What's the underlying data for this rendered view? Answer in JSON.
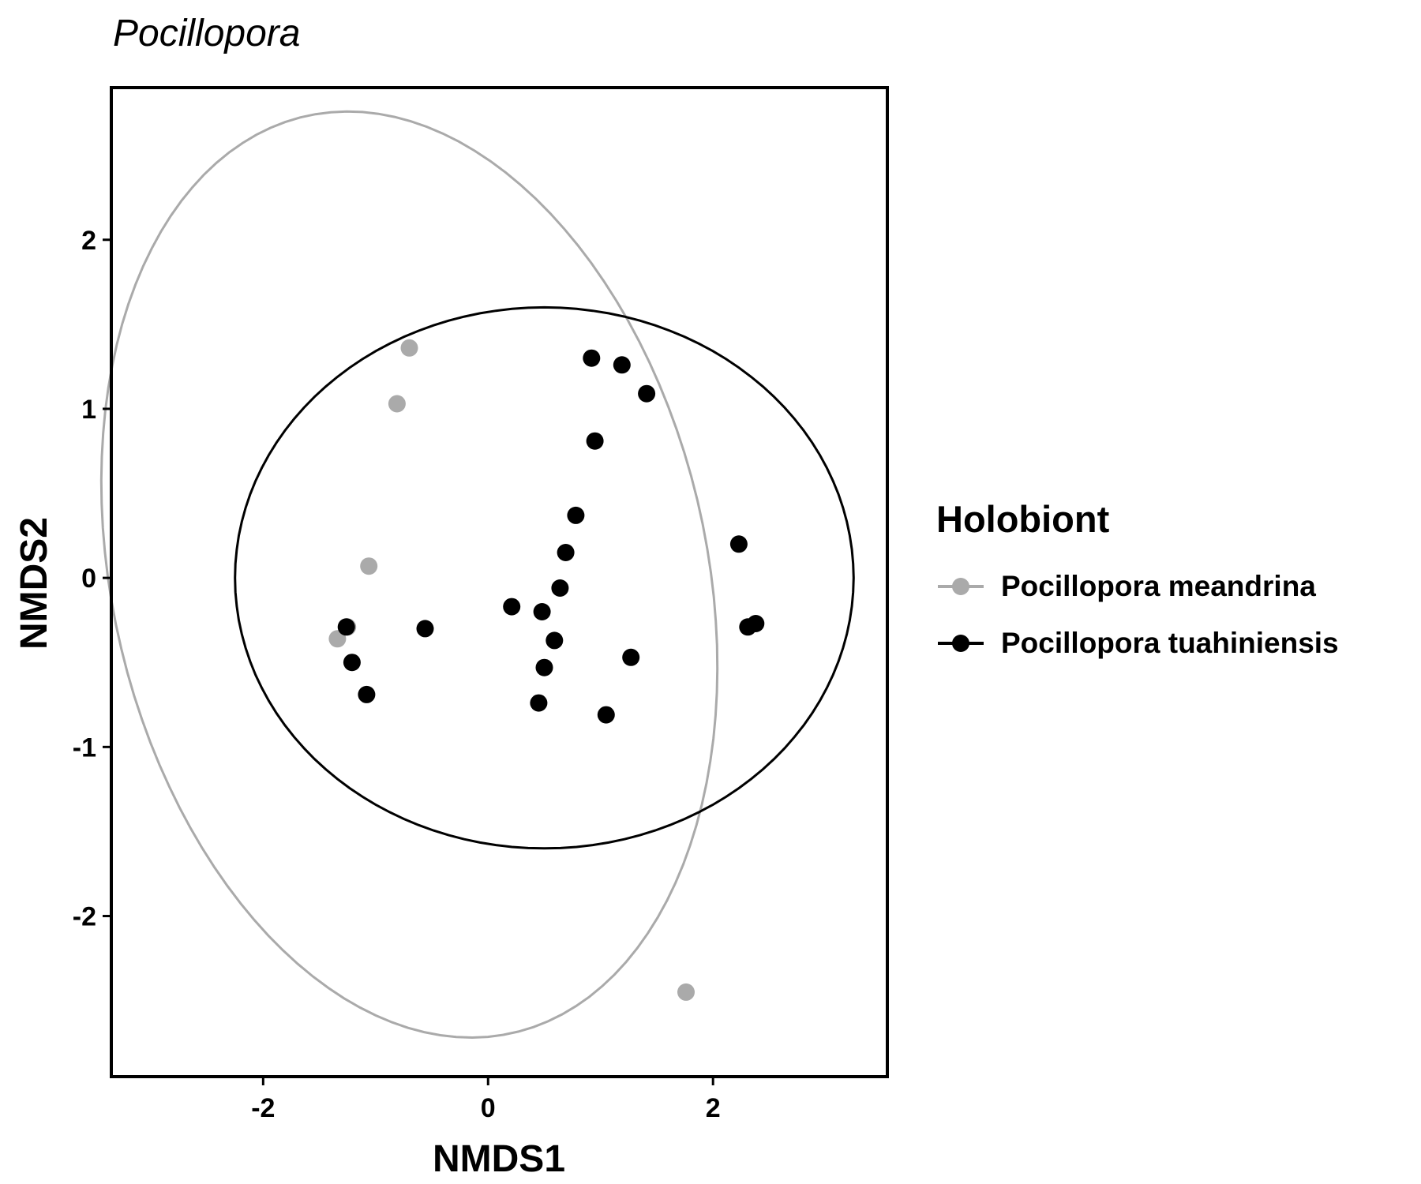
{
  "chart_data": {
    "type": "scatter",
    "title": "Pocillopora",
    "xlabel": "NMDS1",
    "ylabel": "NMDS2",
    "xlim": [
      -3.35,
      3.55
    ],
    "ylim": [
      -2.95,
      2.9
    ],
    "x_ticks": [
      -2,
      0,
      2
    ],
    "y_ticks": [
      -2,
      -1,
      0,
      1,
      2
    ],
    "x_tick_labels": [
      "-2",
      "0",
      "2"
    ],
    "y_tick_labels": [
      "-2",
      "-1",
      "0",
      "1",
      "2"
    ],
    "grid": false,
    "legend": {
      "title": "Holobiont",
      "position": "right"
    },
    "series": [
      {
        "name": "Pocillopora meandrina",
        "color": "#aaaaaa",
        "points": [
          {
            "x": -0.7,
            "y": 1.36
          },
          {
            "x": -0.81,
            "y": 1.03
          },
          {
            "x": -1.06,
            "y": 0.07
          },
          {
            "x": -1.34,
            "y": -0.36
          },
          {
            "x": -1.25,
            "y": -0.29
          },
          {
            "x": 1.76,
            "y": -2.45
          }
        ],
        "ellipse": {
          "cx": -0.7,
          "cy": 0.02,
          "rx": 3.0,
          "ry": 2.45,
          "angle_deg": -45
        }
      },
      {
        "name": "Pocillopora tuahiniensis",
        "color": "#000000",
        "points": [
          {
            "x": 0.92,
            "y": 1.3
          },
          {
            "x": 1.19,
            "y": 1.26
          },
          {
            "x": 1.41,
            "y": 1.09
          },
          {
            "x": 0.95,
            "y": 0.81
          },
          {
            "x": 0.78,
            "y": 0.37
          },
          {
            "x": 0.69,
            "y": 0.15
          },
          {
            "x": 0.64,
            "y": -0.06
          },
          {
            "x": 0.21,
            "y": -0.17
          },
          {
            "x": 0.48,
            "y": -0.2
          },
          {
            "x": 0.59,
            "y": -0.37
          },
          {
            "x": 0.5,
            "y": -0.53
          },
          {
            "x": 1.27,
            "y": -0.47
          },
          {
            "x": 0.45,
            "y": -0.74
          },
          {
            "x": 1.05,
            "y": -0.81
          },
          {
            "x": -0.56,
            "y": -0.3
          },
          {
            "x": -1.26,
            "y": -0.29
          },
          {
            "x": -1.21,
            "y": -0.5
          },
          {
            "x": -1.08,
            "y": -0.69
          },
          {
            "x": 2.23,
            "y": 0.2
          },
          {
            "x": 2.31,
            "y": -0.29
          },
          {
            "x": 2.38,
            "y": -0.27
          }
        ],
        "ellipse": {
          "cx": 0.5,
          "cy": 0.0,
          "rx": 2.75,
          "ry": 1.6,
          "angle_deg": 0
        }
      }
    ]
  }
}
